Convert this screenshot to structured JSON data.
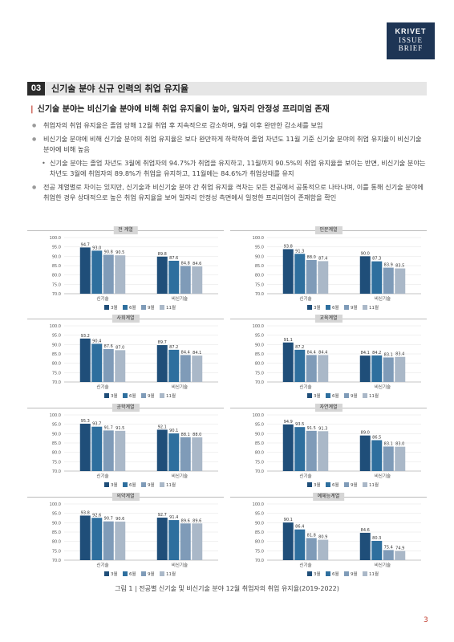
{
  "logo": {
    "line1": "KRIVET",
    "line2": "ISSUE",
    "line3": "BRIEF"
  },
  "section": {
    "number": "03",
    "title": "신기술 분야 신규 인력의 취업 유지율"
  },
  "headline": "신기술 분야는 비신기술 분야에 비해 취업 유지율이 높아, 일자리 안정성 프리미엄 존재",
  "bullets": [
    {
      "level": 1,
      "text": "취업자의 취업 유지율은 졸업 당해 12월 취업 후 지속적으로 감소하며, 9월 이후 완만한 감소세를 보임"
    },
    {
      "level": 1,
      "text": "비신기술 분야에 비해 신기술 분야의 취업 유지율은 보다 완만하게 하락하여 졸업 차년도 11월 기준 신기술 분야의 취업 유지율이 비신기술 분야에 비해 높음"
    },
    {
      "level": 2,
      "text": "신기술 분야는 졸업 차년도 3월에 취업자의 94.7%가 취업을 유지하고, 11월까지 90.5%의 취업 유지율을 보이는 반면, 비신기술 분야는 차년도 3월에 취업자의 89.8%가 취업을 유지하고, 11월에는 84.6%가 취업상태를 유지"
    },
    {
      "level": 1,
      "text": "전공 계열별로 차이는 있지만, 신기술과 비신기술 분야 간 취업 유지율 격차는 모든 전공에서 공통적으로 나타나며, 이를 통해 신기술 분야에 취업한 경우 상대적으로 높은 취업 유지율을 보여 일자리 안정성 측면에서 일정한 프리미엄이 존재함을 확인"
    }
  ],
  "chart_data": [
    {
      "type": "bar",
      "title": "전 계열",
      "categories": [
        "신기술",
        "비신기술"
      ],
      "ylim": [
        70,
        100
      ],
      "yticks": [
        "100.0",
        "95.0",
        "90.0",
        "85.0",
        "80.0",
        "75.0",
        "70.0"
      ],
      "series": [
        {
          "name": "3월",
          "values": [
            94.7,
            89.8
          ]
        },
        {
          "name": "6월",
          "values": [
            93.0,
            87.6
          ]
        },
        {
          "name": "9월",
          "values": [
            90.8,
            84.8
          ]
        },
        {
          "name": "11월",
          "values": [
            90.5,
            84.6
          ]
        }
      ]
    },
    {
      "type": "bar",
      "title": "인문계열",
      "categories": [
        "신기술",
        "비신기술"
      ],
      "ylim": [
        70,
        100
      ],
      "yticks": [
        "100.0",
        "95.0",
        "90.0",
        "85.0",
        "80.0",
        "75.0",
        "70.0"
      ],
      "series": [
        {
          "name": "3월",
          "values": [
            93.8,
            90.0
          ]
        },
        {
          "name": "6월",
          "values": [
            91.3,
            87.3
          ]
        },
        {
          "name": "9월",
          "values": [
            88.0,
            83.9
          ]
        },
        {
          "name": "11월",
          "values": [
            87.4,
            83.5
          ]
        }
      ]
    },
    {
      "type": "bar",
      "title": "사회계열",
      "categories": [
        "신기술",
        "비신기술"
      ],
      "ylim": [
        70,
        100
      ],
      "yticks": [
        "100.0",
        "95.0",
        "90.0",
        "85.0",
        "80.0",
        "75.0",
        "70.0"
      ],
      "series": [
        {
          "name": "3월",
          "values": [
            93.2,
            89.7
          ]
        },
        {
          "name": "6월",
          "values": [
            90.4,
            87.2
          ]
        },
        {
          "name": "9월",
          "values": [
            87.6,
            84.4
          ]
        },
        {
          "name": "11월",
          "values": [
            87.0,
            84.1
          ]
        }
      ]
    },
    {
      "type": "bar",
      "title": "교육계열",
      "categories": [
        "신기술",
        "비신기술"
      ],
      "ylim": [
        70,
        100
      ],
      "yticks": [
        "100.0",
        "95.0",
        "90.0",
        "85.0",
        "80.0",
        "75.0",
        "70.0"
      ],
      "series": [
        {
          "name": "3월",
          "values": [
            91.1,
            84.1
          ]
        },
        {
          "name": "6월",
          "values": [
            87.2,
            84.2
          ]
        },
        {
          "name": "9월",
          "values": [
            84.4,
            83.1
          ]
        },
        {
          "name": "11월",
          "values": [
            84.4,
            83.4
          ]
        }
      ]
    },
    {
      "type": "bar",
      "title": "공학계열",
      "categories": [
        "신기술",
        "비신기술"
      ],
      "ylim": [
        70,
        100
      ],
      "yticks": [
        "100.0",
        "95.0",
        "90.0",
        "85.0",
        "80.0",
        "75.0",
        "70.0"
      ],
      "series": [
        {
          "name": "3월",
          "values": [
            95.3,
            92.1
          ]
        },
        {
          "name": "6월",
          "values": [
            93.7,
            90.1
          ]
        },
        {
          "name": "9월",
          "values": [
            91.7,
            88.1
          ]
        },
        {
          "name": "11월",
          "values": [
            91.5,
            88.0
          ]
        }
      ]
    },
    {
      "type": "bar",
      "title": "자연계열",
      "categories": [
        "신기술",
        "비신기술"
      ],
      "ylim": [
        70,
        100
      ],
      "yticks": [
        "100.0",
        "95.0",
        "90.0",
        "85.0",
        "80.0",
        "75.0",
        "70.0"
      ],
      "series": [
        {
          "name": "3월",
          "values": [
            94.9,
            89.0
          ]
        },
        {
          "name": "6월",
          "values": [
            93.5,
            86.5
          ]
        },
        {
          "name": "9월",
          "values": [
            91.5,
            83.1
          ]
        },
        {
          "name": "11월",
          "values": [
            91.3,
            83.0
          ]
        }
      ]
    },
    {
      "type": "bar",
      "title": "의약계열",
      "categories": [
        "신기술",
        "비신기술"
      ],
      "ylim": [
        70,
        100
      ],
      "yticks": [
        "100.0",
        "95.0",
        "90.0",
        "85.0",
        "80.0",
        "75.0",
        "70.0"
      ],
      "series": [
        {
          "name": "3월",
          "values": [
            93.8,
            92.7
          ]
        },
        {
          "name": "6월",
          "values": [
            92.6,
            91.4
          ]
        },
        {
          "name": "9월",
          "values": [
            90.7,
            89.6
          ]
        },
        {
          "name": "11월",
          "values": [
            90.6,
            89.6
          ]
        }
      ]
    },
    {
      "type": "bar",
      "title": "예체능계열",
      "categories": [
        "신기술",
        "비신기술"
      ],
      "ylim": [
        70,
        100
      ],
      "yticks": [
        "100.0",
        "95.0",
        "90.0",
        "85.0",
        "80.0",
        "75.0",
        "70.0"
      ],
      "series": [
        {
          "name": "3월",
          "values": [
            90.1,
            84.6
          ]
        },
        {
          "name": "6월",
          "values": [
            86.4,
            80.3
          ]
        },
        {
          "name": "9월",
          "values": [
            81.8,
            75.4
          ]
        },
        {
          "name": "11월",
          "values": [
            80.9,
            74.9
          ]
        }
      ]
    }
  ],
  "series_colors": [
    "#1f4e79",
    "#2e6f9e",
    "#7f9bb8",
    "#aab8c8"
  ],
  "caption": "그림 1 | 전공별 신기술 및 비신기술 분야 12월 취업자의 취업 유지율(2019-2022)",
  "page_number": "3"
}
